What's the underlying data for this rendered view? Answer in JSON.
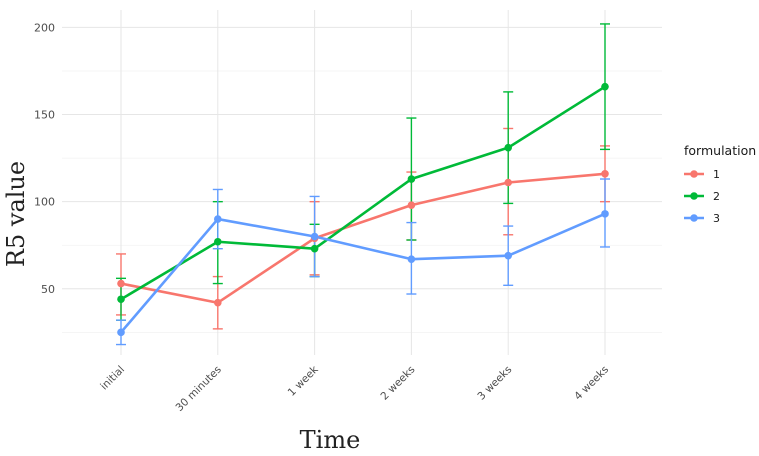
{
  "chart_data": {
    "type": "line",
    "xlabel": "Time",
    "ylabel": "R5 value",
    "categories": [
      "initial",
      "30 minutes",
      "1 week",
      "2 weeks",
      "3 weeks",
      "4 weeks"
    ],
    "ylim": [
      12,
      210
    ],
    "yticks": [
      "50",
      "100",
      "150",
      "200"
    ],
    "grid": true,
    "legend": {
      "title": "formulation",
      "placement": "right"
    },
    "series": [
      {
        "name": "1",
        "color": "#F8766D",
        "values": [
          53,
          42,
          79,
          98,
          111,
          116
        ],
        "err_low": [
          35,
          27,
          58,
          78,
          81,
          100
        ],
        "err_high": [
          70,
          57,
          100,
          117,
          142,
          132
        ]
      },
      {
        "name": "2",
        "color": "#00BA38",
        "values": [
          44,
          77,
          73,
          113,
          131,
          166
        ],
        "err_low": [
          32,
          53,
          57,
          78,
          99,
          130
        ],
        "err_high": [
          56,
          100,
          87,
          148,
          163,
          202
        ]
      },
      {
        "name": "3",
        "color": "#619CFF",
        "values": [
          25,
          90,
          80,
          67,
          69,
          93
        ],
        "err_low": [
          18,
          73,
          57,
          47,
          52,
          74
        ],
        "err_high": [
          32,
          107,
          103,
          88,
          86,
          113
        ]
      }
    ]
  }
}
